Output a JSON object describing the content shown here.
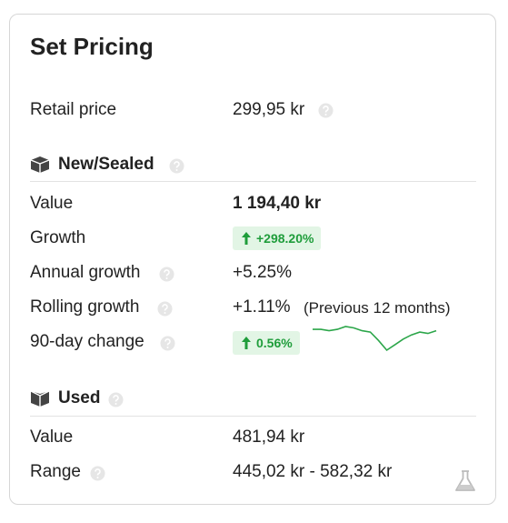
{
  "title": "Set Pricing",
  "retail_price": {
    "label": "Retail price",
    "value": "299,95 kr"
  },
  "sections": [
    {
      "title": "New/Sealed",
      "rows": [
        {
          "label": "Value",
          "value": "1 194,40 kr"
        },
        {
          "label": "Growth",
          "value": "+298.20%"
        },
        {
          "label": "Annual growth",
          "value": "+5.25%"
        },
        {
          "label": "Rolling growth",
          "value": "+1.11%",
          "note": "(Previous 12 months)"
        },
        {
          "label": "90-day change",
          "value": "0.56%",
          "sparkline": [
            20,
            20,
            19,
            20,
            22,
            21,
            19,
            18,
            12,
            5,
            9,
            13,
            16,
            18,
            17,
            19
          ]
        }
      ]
    },
    {
      "title": "Used",
      "rows": [
        {
          "label": "Value",
          "value": "481,94 kr"
        },
        {
          "label": "Range",
          "value": "445,02 kr - 582,32 kr"
        }
      ]
    }
  ]
}
